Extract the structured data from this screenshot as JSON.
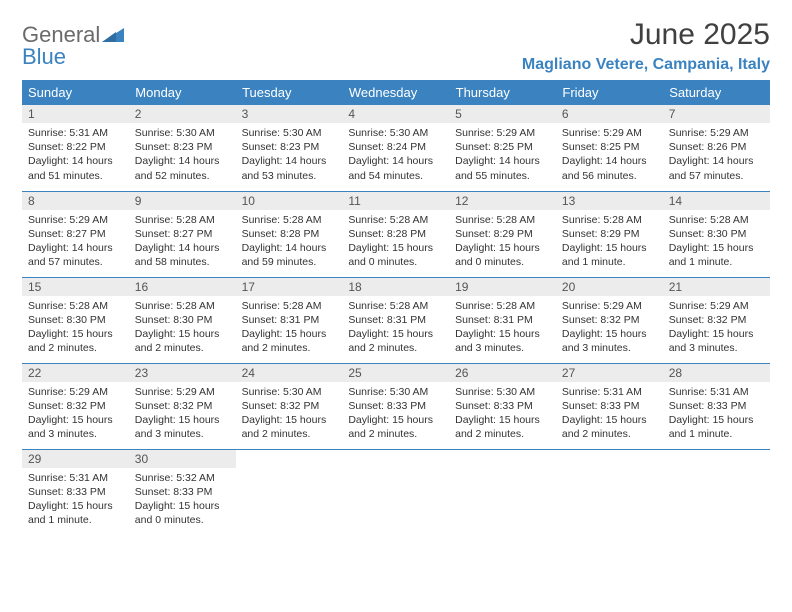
{
  "logo": {
    "word1": "General",
    "word2": "Blue",
    "word1_color": "#6b6b6b",
    "word2_color": "#3b83c0"
  },
  "header": {
    "title": "June 2025",
    "location": "Magliano Vetere, Campania, Italy"
  },
  "colors": {
    "header_bg": "#3b83c0",
    "header_text": "#ffffff",
    "daynum_bg": "#ececec",
    "border": "#3b83c0",
    "body_text": "#333333"
  },
  "weekdays": [
    "Sunday",
    "Monday",
    "Tuesday",
    "Wednesday",
    "Thursday",
    "Friday",
    "Saturday"
  ],
  "weeks": [
    [
      {
        "n": "1",
        "sr": "Sunrise: 5:31 AM",
        "ss": "Sunset: 8:22 PM",
        "d1": "Daylight: 14 hours",
        "d2": "and 51 minutes."
      },
      {
        "n": "2",
        "sr": "Sunrise: 5:30 AM",
        "ss": "Sunset: 8:23 PM",
        "d1": "Daylight: 14 hours",
        "d2": "and 52 minutes."
      },
      {
        "n": "3",
        "sr": "Sunrise: 5:30 AM",
        "ss": "Sunset: 8:23 PM",
        "d1": "Daylight: 14 hours",
        "d2": "and 53 minutes."
      },
      {
        "n": "4",
        "sr": "Sunrise: 5:30 AM",
        "ss": "Sunset: 8:24 PM",
        "d1": "Daylight: 14 hours",
        "d2": "and 54 minutes."
      },
      {
        "n": "5",
        "sr": "Sunrise: 5:29 AM",
        "ss": "Sunset: 8:25 PM",
        "d1": "Daylight: 14 hours",
        "d2": "and 55 minutes."
      },
      {
        "n": "6",
        "sr": "Sunrise: 5:29 AM",
        "ss": "Sunset: 8:25 PM",
        "d1": "Daylight: 14 hours",
        "d2": "and 56 minutes."
      },
      {
        "n": "7",
        "sr": "Sunrise: 5:29 AM",
        "ss": "Sunset: 8:26 PM",
        "d1": "Daylight: 14 hours",
        "d2": "and 57 minutes."
      }
    ],
    [
      {
        "n": "8",
        "sr": "Sunrise: 5:29 AM",
        "ss": "Sunset: 8:27 PM",
        "d1": "Daylight: 14 hours",
        "d2": "and 57 minutes."
      },
      {
        "n": "9",
        "sr": "Sunrise: 5:28 AM",
        "ss": "Sunset: 8:27 PM",
        "d1": "Daylight: 14 hours",
        "d2": "and 58 minutes."
      },
      {
        "n": "10",
        "sr": "Sunrise: 5:28 AM",
        "ss": "Sunset: 8:28 PM",
        "d1": "Daylight: 14 hours",
        "d2": "and 59 minutes."
      },
      {
        "n": "11",
        "sr": "Sunrise: 5:28 AM",
        "ss": "Sunset: 8:28 PM",
        "d1": "Daylight: 15 hours",
        "d2": "and 0 minutes."
      },
      {
        "n": "12",
        "sr": "Sunrise: 5:28 AM",
        "ss": "Sunset: 8:29 PM",
        "d1": "Daylight: 15 hours",
        "d2": "and 0 minutes."
      },
      {
        "n": "13",
        "sr": "Sunrise: 5:28 AM",
        "ss": "Sunset: 8:29 PM",
        "d1": "Daylight: 15 hours",
        "d2": "and 1 minute."
      },
      {
        "n": "14",
        "sr": "Sunrise: 5:28 AM",
        "ss": "Sunset: 8:30 PM",
        "d1": "Daylight: 15 hours",
        "d2": "and 1 minute."
      }
    ],
    [
      {
        "n": "15",
        "sr": "Sunrise: 5:28 AM",
        "ss": "Sunset: 8:30 PM",
        "d1": "Daylight: 15 hours",
        "d2": "and 2 minutes."
      },
      {
        "n": "16",
        "sr": "Sunrise: 5:28 AM",
        "ss": "Sunset: 8:30 PM",
        "d1": "Daylight: 15 hours",
        "d2": "and 2 minutes."
      },
      {
        "n": "17",
        "sr": "Sunrise: 5:28 AM",
        "ss": "Sunset: 8:31 PM",
        "d1": "Daylight: 15 hours",
        "d2": "and 2 minutes."
      },
      {
        "n": "18",
        "sr": "Sunrise: 5:28 AM",
        "ss": "Sunset: 8:31 PM",
        "d1": "Daylight: 15 hours",
        "d2": "and 2 minutes."
      },
      {
        "n": "19",
        "sr": "Sunrise: 5:28 AM",
        "ss": "Sunset: 8:31 PM",
        "d1": "Daylight: 15 hours",
        "d2": "and 3 minutes."
      },
      {
        "n": "20",
        "sr": "Sunrise: 5:29 AM",
        "ss": "Sunset: 8:32 PM",
        "d1": "Daylight: 15 hours",
        "d2": "and 3 minutes."
      },
      {
        "n": "21",
        "sr": "Sunrise: 5:29 AM",
        "ss": "Sunset: 8:32 PM",
        "d1": "Daylight: 15 hours",
        "d2": "and 3 minutes."
      }
    ],
    [
      {
        "n": "22",
        "sr": "Sunrise: 5:29 AM",
        "ss": "Sunset: 8:32 PM",
        "d1": "Daylight: 15 hours",
        "d2": "and 3 minutes."
      },
      {
        "n": "23",
        "sr": "Sunrise: 5:29 AM",
        "ss": "Sunset: 8:32 PM",
        "d1": "Daylight: 15 hours",
        "d2": "and 3 minutes."
      },
      {
        "n": "24",
        "sr": "Sunrise: 5:30 AM",
        "ss": "Sunset: 8:32 PM",
        "d1": "Daylight: 15 hours",
        "d2": "and 2 minutes."
      },
      {
        "n": "25",
        "sr": "Sunrise: 5:30 AM",
        "ss": "Sunset: 8:33 PM",
        "d1": "Daylight: 15 hours",
        "d2": "and 2 minutes."
      },
      {
        "n": "26",
        "sr": "Sunrise: 5:30 AM",
        "ss": "Sunset: 8:33 PM",
        "d1": "Daylight: 15 hours",
        "d2": "and 2 minutes."
      },
      {
        "n": "27",
        "sr": "Sunrise: 5:31 AM",
        "ss": "Sunset: 8:33 PM",
        "d1": "Daylight: 15 hours",
        "d2": "and 2 minutes."
      },
      {
        "n": "28",
        "sr": "Sunrise: 5:31 AM",
        "ss": "Sunset: 8:33 PM",
        "d1": "Daylight: 15 hours",
        "d2": "and 1 minute."
      }
    ],
    [
      {
        "n": "29",
        "sr": "Sunrise: 5:31 AM",
        "ss": "Sunset: 8:33 PM",
        "d1": "Daylight: 15 hours",
        "d2": "and 1 minute."
      },
      {
        "n": "30",
        "sr": "Sunrise: 5:32 AM",
        "ss": "Sunset: 8:33 PM",
        "d1": "Daylight: 15 hours",
        "d2": "and 0 minutes."
      },
      {
        "empty": true
      },
      {
        "empty": true
      },
      {
        "empty": true
      },
      {
        "empty": true
      },
      {
        "empty": true
      }
    ]
  ]
}
